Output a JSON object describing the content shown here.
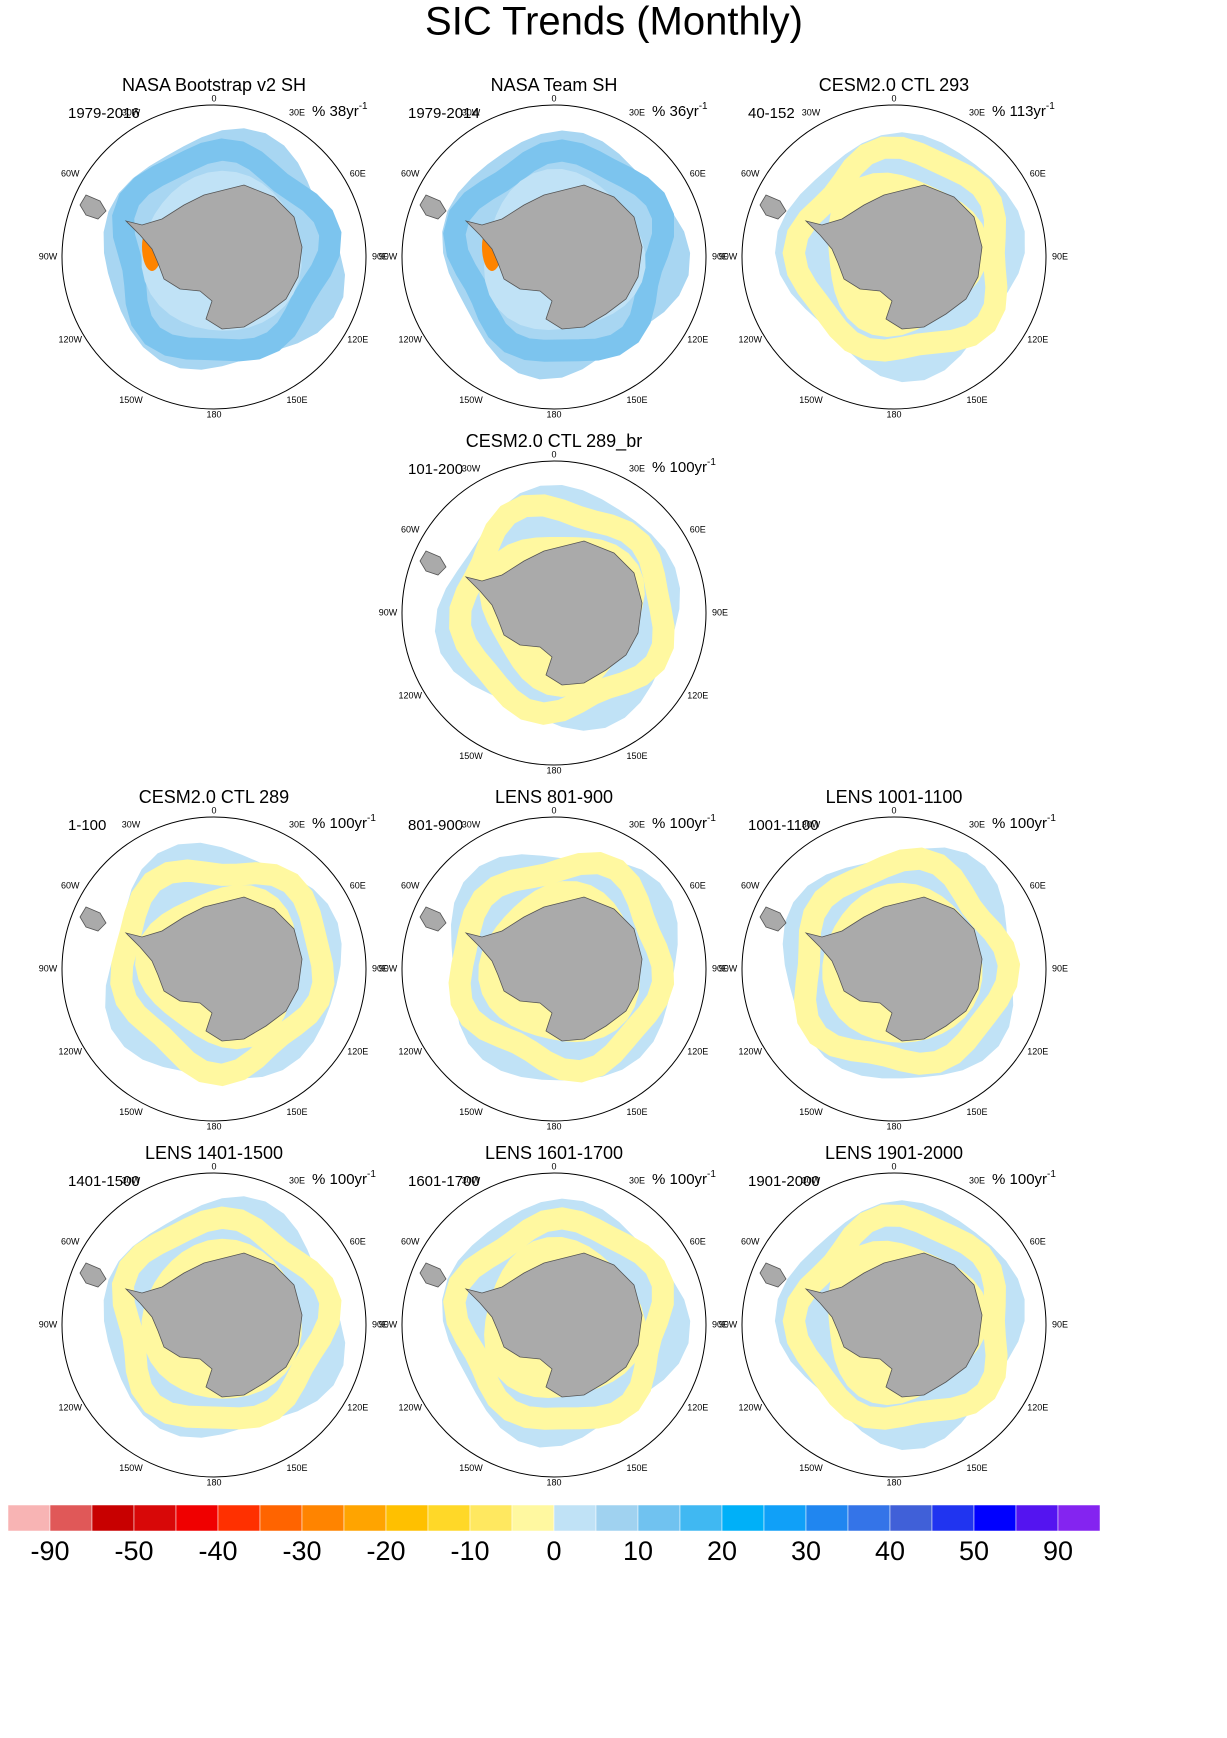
{
  "title": "SIC Trends (Monthly)",
  "unit_exponent": "-1",
  "longitude_labels": [
    "0",
    "30E",
    "60E",
    "90E",
    "120E",
    "150E",
    "180",
    "150W",
    "120W",
    "90W",
    "60W",
    "30W"
  ],
  "panels": [
    {
      "title": "NASA Bootstrap v2 SH",
      "period": "1979-2016",
      "unit": "% 38yr"
    },
    {
      "title": "NASA Team SH",
      "period": "1979-2014",
      "unit": "% 36yr"
    },
    {
      "title": "CESM2.0 CTL 293",
      "period": "40-152",
      "unit": "% 113yr"
    },
    {
      "title": "CESM2.0 CTL 289_br",
      "period": "101-200",
      "unit": "% 100yr"
    },
    {
      "title": "CESM2.0 CTL 289",
      "period": "1-100",
      "unit": "% 100yr"
    },
    {
      "title": "LENS 801-900",
      "period": "801-900",
      "unit": "% 100yr"
    },
    {
      "title": "LENS 1001-1100",
      "period": "1001-1100",
      "unit": "% 100yr"
    },
    {
      "title": "LENS 1401-1500",
      "period": "1401-1500",
      "unit": "% 100yr"
    },
    {
      "title": "LENS 1601-1700",
      "period": "1601-1700",
      "unit": "% 100yr"
    },
    {
      "title": "LENS 1901-2000",
      "period": "1901-2000",
      "unit": "% 100yr"
    }
  ],
  "colorbar": {
    "colors": [
      "#f8b4b4",
      "#e05858",
      "#c80000",
      "#d80808",
      "#f00000",
      "#ff3000",
      "#ff6400",
      "#ff8400",
      "#ffa400",
      "#ffc000",
      "#ffd828",
      "#ffe860",
      "#fff8a0",
      "#c0e2f6",
      "#a0d2f0",
      "#70c2f0",
      "#40b8f2",
      "#00b0f8",
      "#10a0f8",
      "#2086f0",
      "#3474e8",
      "#4060d8",
      "#2034f0",
      "#0000ff",
      "#5414f0",
      "#8424f0"
    ],
    "ticks": [
      -90,
      -50,
      -40,
      -30,
      -20,
      -10,
      0,
      10,
      20,
      30,
      40,
      50,
      90
    ]
  }
}
